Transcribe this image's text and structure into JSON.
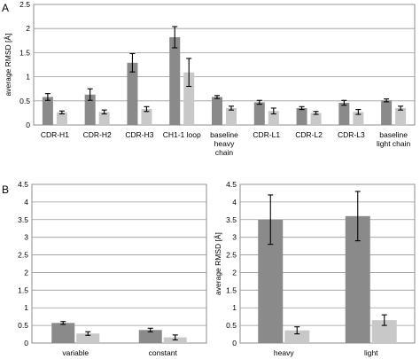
{
  "panels": [
    {
      "label": "A",
      "chart_data": {
        "type": "bar",
        "ylabel": "average RMSD [Å]",
        "ylim": [
          0,
          2.5
        ],
        "yticks": [
          "0",
          "0.5",
          "1",
          "1.5",
          "2",
          "2.5"
        ],
        "grid": true,
        "categories": [
          [
            "CDR-H1"
          ],
          [
            "CDR-H2"
          ],
          [
            "CDR-H3"
          ],
          [
            "CH1-1 loop"
          ],
          [
            "baseline",
            "heavy",
            "chain"
          ],
          [
            "CDR-L1"
          ],
          [
            "CDR-L2"
          ],
          [
            "CDR-L3"
          ],
          [
            "baseline",
            "light chain"
          ]
        ],
        "series": [
          {
            "color": "#8a8a8a",
            "values": [
              0.58,
              0.63,
              1.29,
              1.82,
              0.58,
              0.47,
              0.35,
              0.46,
              0.51
            ],
            "errors": [
              0.07,
              0.12,
              0.19,
              0.22,
              0.03,
              0.04,
              0.03,
              0.05,
              0.03
            ]
          },
          {
            "color": "#c8c8c8",
            "values": [
              0.26,
              0.27,
              0.33,
              1.09,
              0.35,
              0.29,
              0.25,
              0.27,
              0.35
            ],
            "errors": [
              0.03,
              0.04,
              0.05,
              0.29,
              0.04,
              0.06,
              0.03,
              0.05,
              0.04
            ]
          }
        ]
      }
    },
    {
      "label": "B",
      "chart_data": [
        {
          "type": "bar",
          "ylabel": "",
          "ylim": [
            0,
            4.5
          ],
          "yticks": [
            "0",
            "0.5",
            "1",
            "1.5",
            "2",
            "2.5",
            "3",
            "3.5",
            "4",
            "4.5"
          ],
          "grid": true,
          "categories": [
            [
              "variable"
            ],
            [
              "constant"
            ]
          ],
          "series": [
            {
              "color": "#8a8a8a",
              "values": [
                0.57,
                0.37
              ],
              "errors": [
                0.04,
                0.05
              ]
            },
            {
              "color": "#c8c8c8",
              "values": [
                0.27,
                0.16
              ],
              "errors": [
                0.05,
                0.07
              ]
            }
          ]
        },
        {
          "type": "bar",
          "ylabel": "average RMSD [Å]",
          "ylim": [
            0,
            4.5
          ],
          "yticks": [
            "0",
            "0.5",
            "1",
            "1.5",
            "2",
            "2.5",
            "3",
            "3.5",
            "4",
            "4.5"
          ],
          "grid": true,
          "categories": [
            [
              "heavy"
            ],
            [
              "light"
            ]
          ],
          "series": [
            {
              "color": "#8a8a8a",
              "values": [
                3.5,
                3.6
              ],
              "errors": [
                0.7,
                0.7
              ]
            },
            {
              "color": "#c8c8c8",
              "values": [
                0.36,
                0.65
              ],
              "errors": [
                0.1,
                0.15
              ]
            }
          ]
        }
      ]
    }
  ]
}
